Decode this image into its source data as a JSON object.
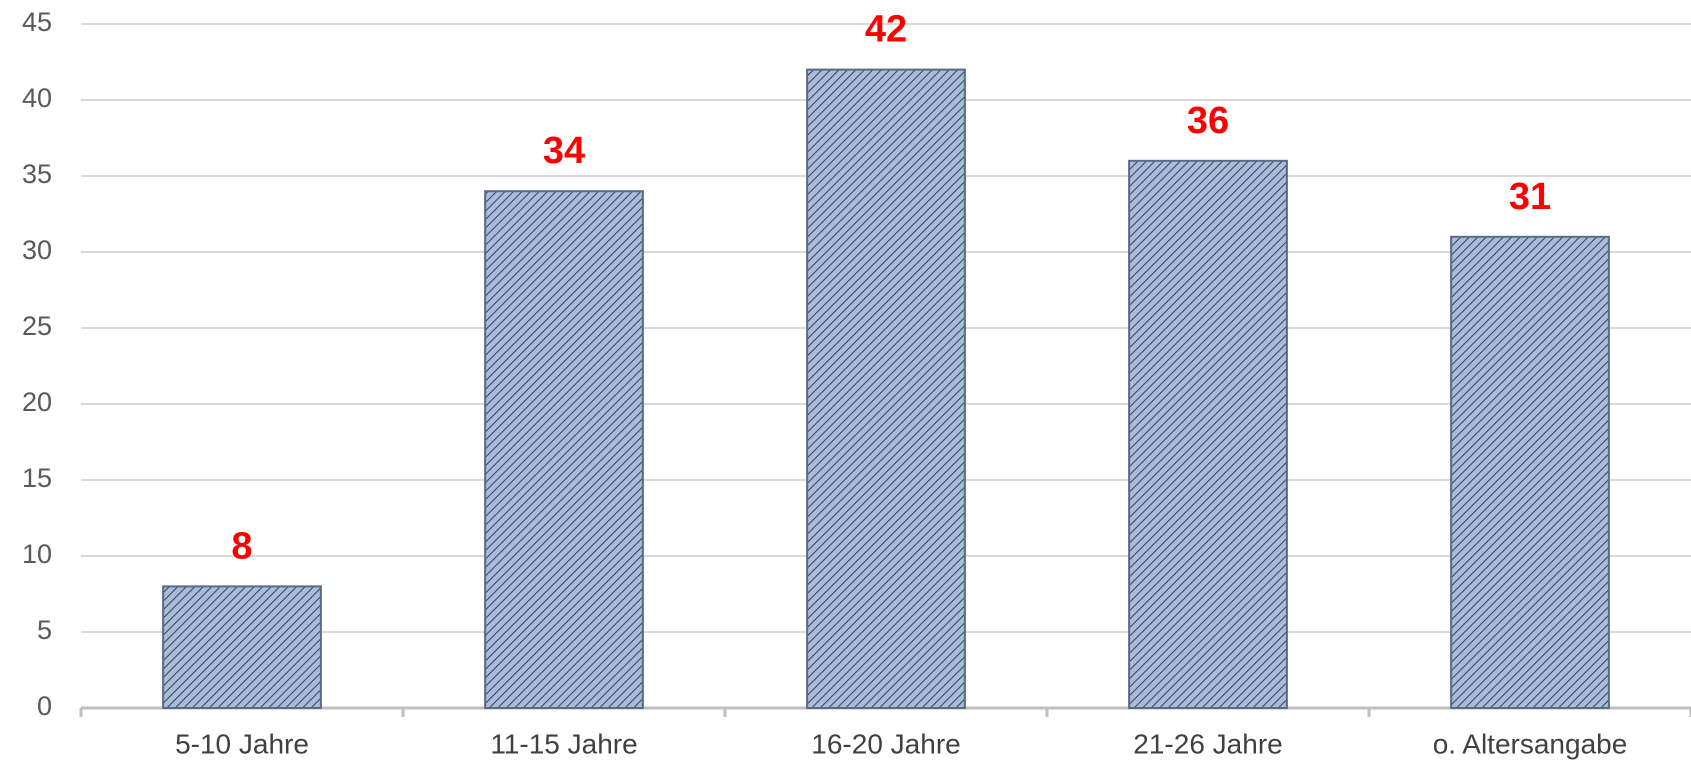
{
  "chart_data": {
    "type": "bar",
    "categories": [
      "5-10 Jahre",
      "11-15 Jahre",
      "16-20 Jahre",
      "21-26 Jahre",
      "o. Altersangabe"
    ],
    "values": [
      8,
      34,
      42,
      36,
      31
    ],
    "color": "#a9bcd9",
    "label_color": "#ff0000",
    "ylim": [
      0,
      45
    ],
    "yticks": [
      0,
      5,
      10,
      15,
      20,
      25,
      30,
      35,
      40,
      45
    ],
    "grid": true
  }
}
